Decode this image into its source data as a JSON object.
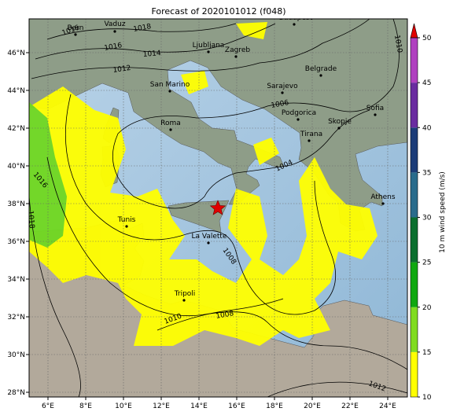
{
  "title": "Forecast of 2020101012 (f048)",
  "longitude_labels": [
    "6°E",
    "8°E",
    "10°E",
    "12°E",
    "14°E",
    "16°E",
    "18°E",
    "20°E",
    "22°E",
    "24°E"
  ],
  "latitude_labels": [
    "46°N",
    "44°N",
    "42°N",
    "40°N",
    "38°N",
    "36°N",
    "34°N",
    "32°N",
    "30°N",
    "28°N"
  ],
  "cities": [
    "Bern",
    "Vaduz",
    "Budapest",
    "Ljubljana",
    "Zagreb",
    "San Marino",
    "Sarajevo",
    "Belgrade",
    "Podgorica",
    "Sofia",
    "Skopje",
    "Tirana",
    "Roma",
    "Tunis",
    "La Valette",
    "Tripoli",
    "Athens"
  ],
  "isobar_labels": [
    "1016",
    "1018",
    "1016",
    "1014",
    "1012",
    "1010",
    "1006",
    "1004",
    "1016",
    "1018",
    "1008",
    "1010",
    "1008",
    "1012"
  ],
  "colorbar": {
    "label": "10 m wind speed (m/s)",
    "ticks": [
      10,
      15,
      20,
      25,
      30,
      35,
      40,
      45,
      50
    ],
    "colors": [
      "#ffff00",
      "#80dc20",
      "#10a810",
      "#0b6e2e",
      "#2a6c8c",
      "#1c3c78",
      "#6a2ca0",
      "#b040c0"
    ],
    "extend_color": "#e00000"
  }
}
